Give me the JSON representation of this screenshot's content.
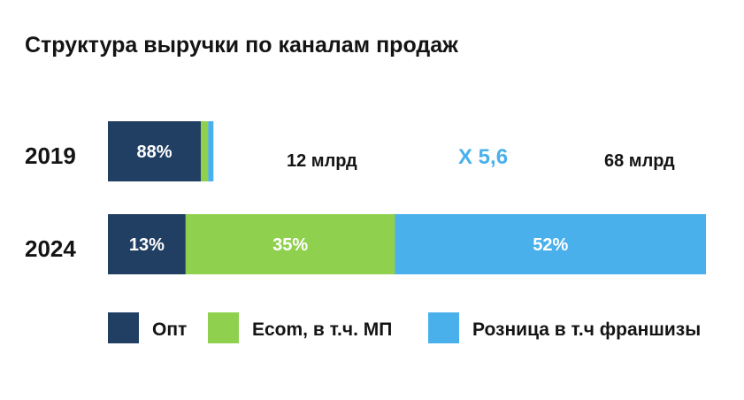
{
  "chart_data": {
    "type": "bar",
    "orientation": "horizontal",
    "stacked": true,
    "title": "Структура выручки по каналам продаж",
    "categories": [
      "2019",
      "2024"
    ],
    "series": [
      {
        "name": "Опт",
        "color": "#213f63",
        "values": [
          88,
          13
        ],
        "labels": [
          "88%",
          "13%"
        ]
      },
      {
        "name": "Ecom, в т.ч. МП",
        "color": "#8fd14f",
        "values": [
          7,
          35
        ],
        "labels": [
          "",
          "35%"
        ]
      },
      {
        "name": "Розница в т.ч франшизы",
        "color": "#4ab0ec",
        "values": [
          5,
          52
        ],
        "labels": [
          "",
          "52%"
        ]
      }
    ],
    "totals": [
      {
        "label": "12 млрд",
        "value": 12
      },
      {
        "label": "68 млрд",
        "value": 68
      }
    ],
    "multiplier": {
      "label": "X 5,6",
      "color": "#4ab0ec"
    },
    "legend_position": "bottom",
    "grid": false
  }
}
